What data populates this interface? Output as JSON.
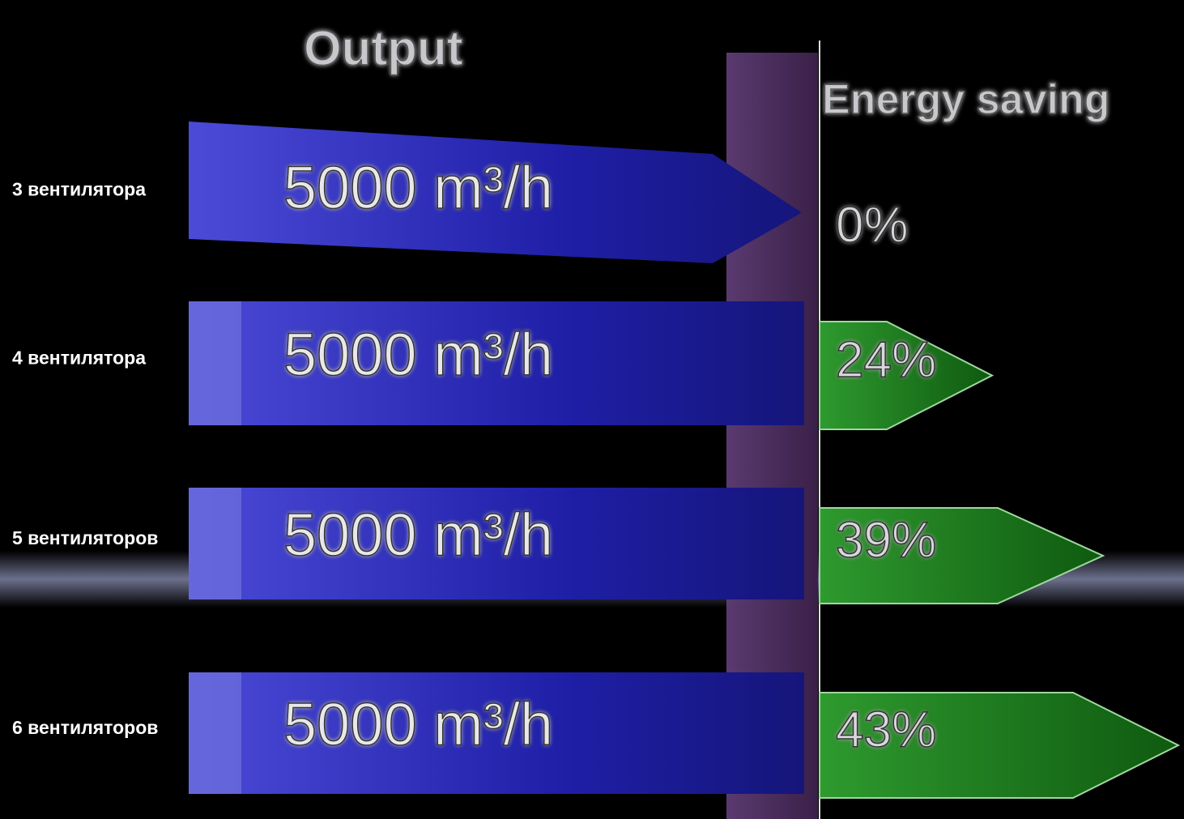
{
  "titles": {
    "output": "Output",
    "saving": "Energy saving"
  },
  "rows": [
    {
      "label": "3 вентилятора",
      "output": "5000 m³/h",
      "saving": "0%"
    },
    {
      "label": "4 вентилятора",
      "output": "5000 m³/h",
      "saving": "24%"
    },
    {
      "label": "5 вентиляторов",
      "output": "5000 m³/h",
      "saving": "39%"
    },
    {
      "label": "6 вентиляторов",
      "output": "5000 m³/h",
      "saving": "43%"
    }
  ]
}
